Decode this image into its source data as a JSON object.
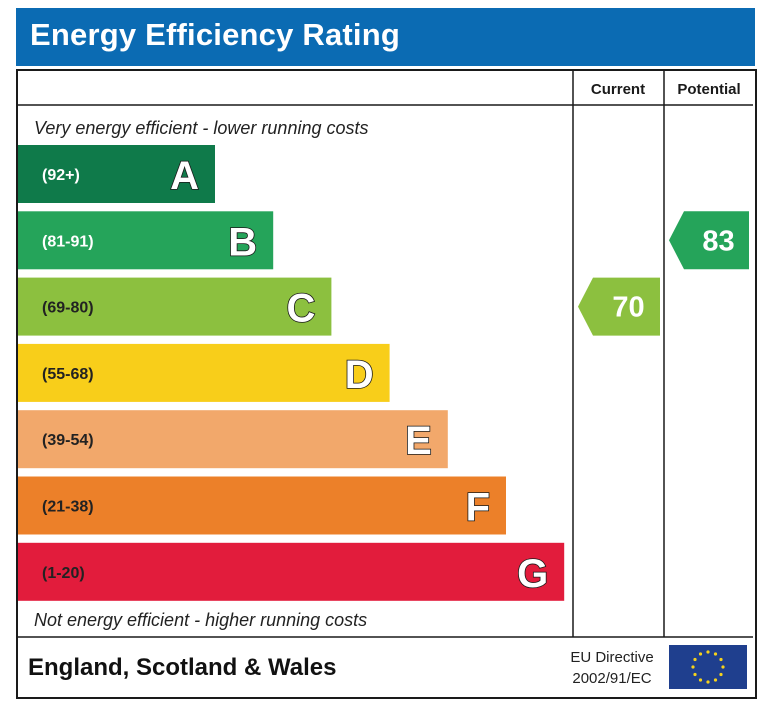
{
  "title": "Energy Efficiency Rating",
  "columns": {
    "current": "Current",
    "potential": "Potential"
  },
  "top_caption": "Very energy efficient - lower running costs",
  "bottom_caption": "Not energy efficient - higher running costs",
  "footer": {
    "region": "England, Scotland & Wales",
    "directive_line1": "EU Directive",
    "directive_line2": "2002/91/EC"
  },
  "chart_data": {
    "type": "bar",
    "bands": [
      {
        "letter": "A",
        "range": "(92+)",
        "color": "#0f7a4a"
      },
      {
        "letter": "B",
        "range": "(81-91)",
        "color": "#25a45a"
      },
      {
        "letter": "C",
        "range": "(69-80)",
        "color": "#8cc03f"
      },
      {
        "letter": "D",
        "range": "(55-68)",
        "color": "#f8ce1a"
      },
      {
        "letter": "E",
        "range": "(39-54)",
        "color": "#f2a86b"
      },
      {
        "letter": "F",
        "range": "(21-38)",
        "color": "#ec8029"
      },
      {
        "letter": "G",
        "range": "(1-20)",
        "color": "#e21c3c"
      }
    ],
    "current": {
      "value": 70,
      "band": "C",
      "color": "#8cc03f"
    },
    "potential": {
      "value": 83,
      "band": "B",
      "color": "#25a45a"
    }
  }
}
